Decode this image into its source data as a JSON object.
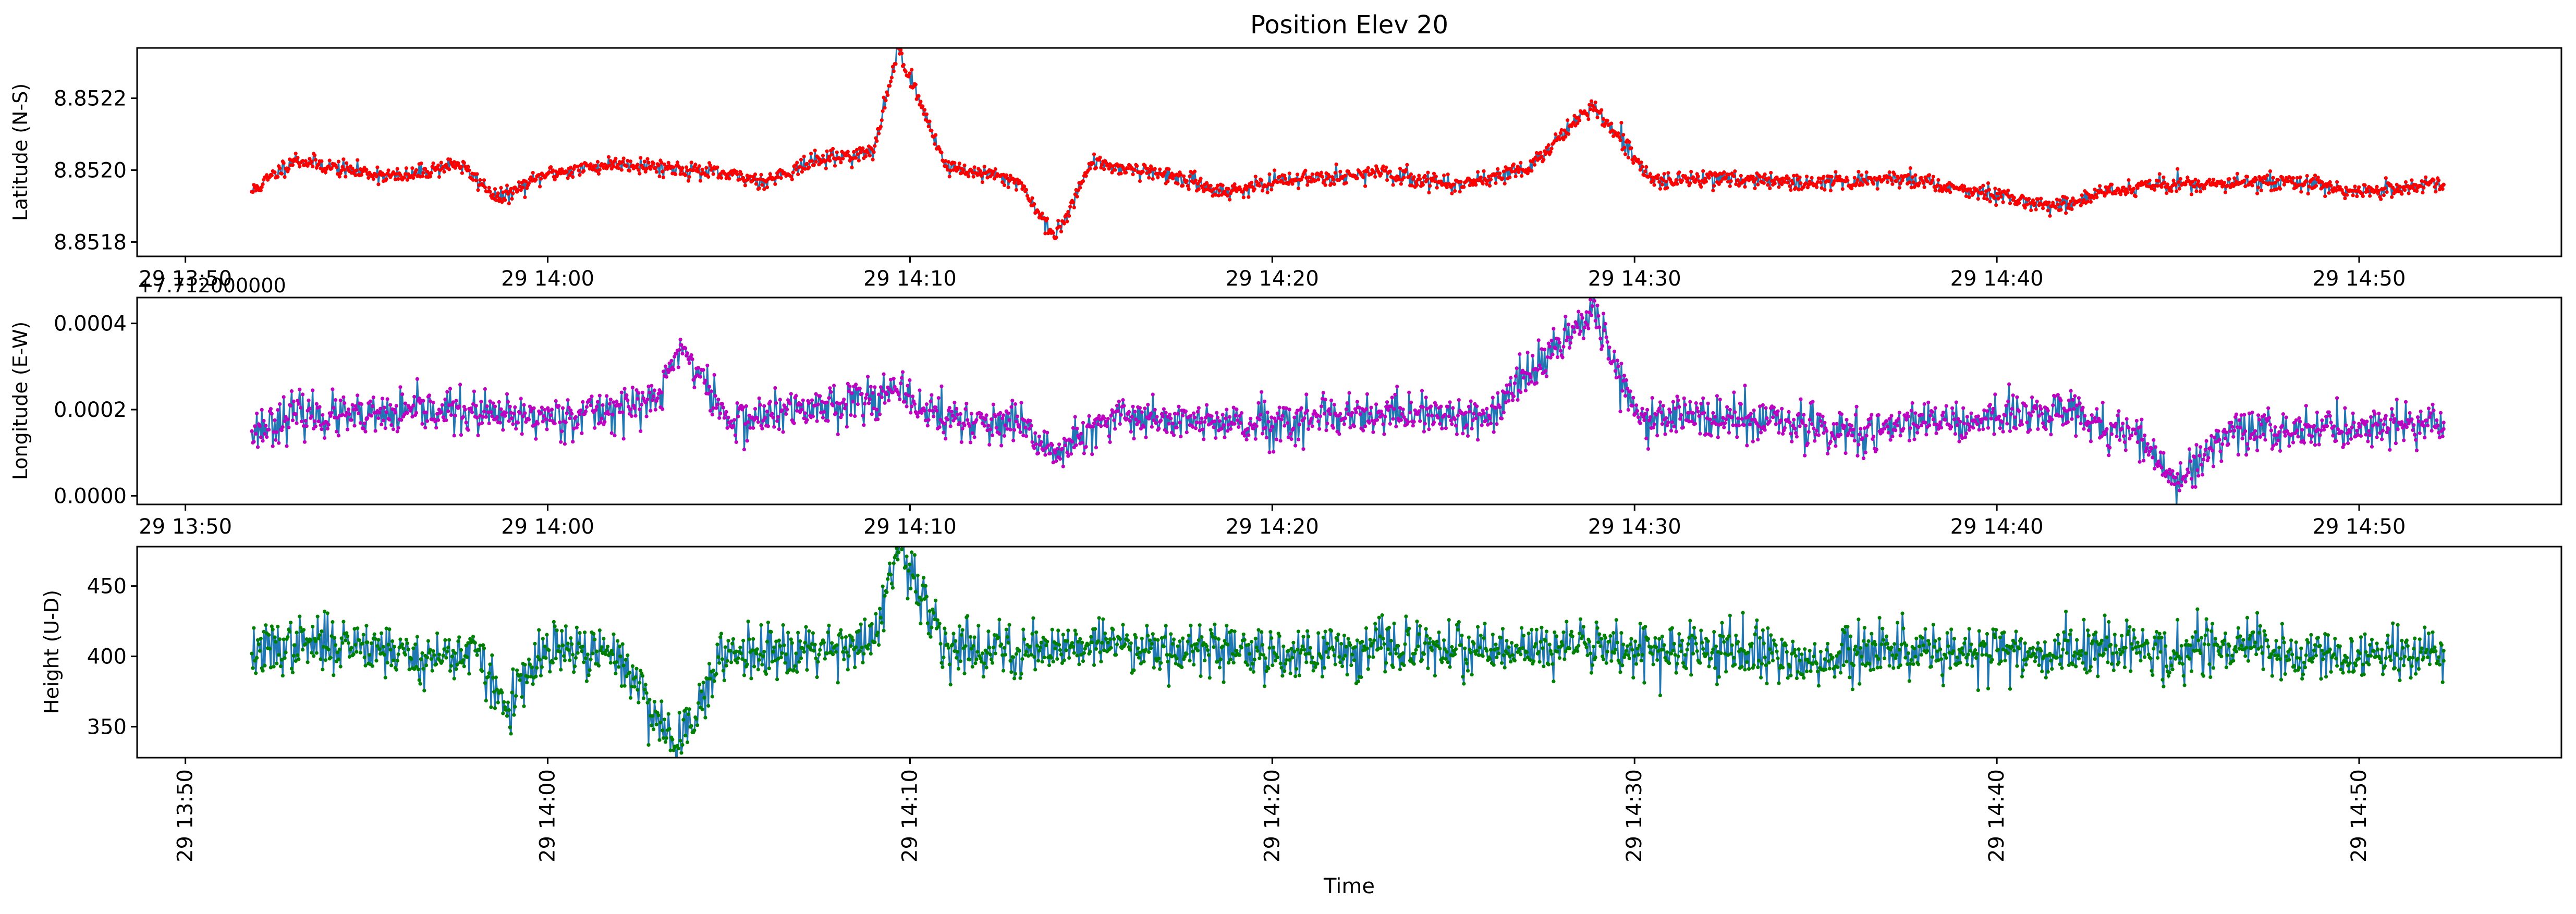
{
  "figure": {
    "title": "Position Elev 20",
    "xlabel": "Time"
  },
  "colors": {
    "series_line": "#1f77b4",
    "lat_markers": "#ff0000",
    "lon_markers": "#c000c0",
    "hgt_markers": "#008000",
    "axes": "#000000"
  },
  "chart_data": [
    {
      "type": "line",
      "title": "Position Elev 20",
      "ylabel": "Latitude (N-S)",
      "xlabel": "",
      "x_ticks": [
        "29 13:50",
        "29 14:00",
        "29 14:10",
        "29 14:20",
        "29 14:30",
        "29 14:40",
        "29 14:50"
      ],
      "x_range": [
        "13:48:40",
        "14:55:35"
      ],
      "ylim": [
        8.85176,
        8.85234
      ],
      "y_ticks": [
        8.8518,
        8.852,
        8.8522
      ],
      "y_tick_labels": [
        "8.8518",
        "8.8520",
        "8.8522"
      ],
      "marker_color": "#ff0000",
      "series": [
        {
          "time_start": "13:51:50",
          "time_end": "14:52:20",
          "points": [
            [
              "13:51:50",
              8.85194
            ],
            [
              "13:53:00",
              8.85203
            ],
            [
              "13:54:30",
              8.852
            ],
            [
              "13:56:00",
              8.85198
            ],
            [
              "13:57:30",
              8.85202
            ],
            [
              "13:58:40",
              8.85192
            ],
            [
              "14:00:00",
              8.85199
            ],
            [
              "14:02:00",
              8.85202
            ],
            [
              "14:04:00",
              8.852
            ],
            [
              "14:06:00",
              8.85197
            ],
            [
              "14:07:30",
              8.85203
            ],
            [
              "14:09:00",
              8.85205
            ],
            [
              "14:09:40",
              8.85234
            ],
            [
              "14:11:00",
              8.85201
            ],
            [
              "14:13:00",
              8.85197
            ],
            [
              "14:14:00",
              8.85181
            ],
            [
              "14:15:00",
              8.85202
            ],
            [
              "14:17:00",
              8.85199
            ],
            [
              "14:18:40",
              8.85194
            ],
            [
              "14:21:00",
              8.85198
            ],
            [
              "14:23:00",
              8.85199
            ],
            [
              "14:25:00",
              8.85196
            ],
            [
              "14:27:00",
              8.852
            ],
            [
              "14:28:50",
              8.85218
            ],
            [
              "14:30:30",
              8.85197
            ],
            [
              "14:32:30",
              8.85198
            ],
            [
              "14:35:00",
              8.85196
            ],
            [
              "14:37:00",
              8.85198
            ],
            [
              "14:39:00",
              8.85195
            ],
            [
              "14:41:30",
              8.8519
            ],
            [
              "14:44:00",
              8.85196
            ],
            [
              "14:46:00",
              8.85196
            ],
            [
              "14:48:00",
              8.85197
            ],
            [
              "14:50:00",
              8.85194
            ],
            [
              "14:52:20",
              8.85196
            ]
          ]
        }
      ]
    },
    {
      "type": "line",
      "ylabel": "Longitude (E-W)",
      "xlabel": "",
      "offset_text": "+7.712000000",
      "x_ticks": [
        "29 13:50",
        "29 14:00",
        "29 14:10",
        "29 14:20",
        "29 14:30",
        "29 14:40",
        "29 14:50"
      ],
      "x_range": [
        "13:48:40",
        "14:55:35"
      ],
      "ylim": [
        -2e-05,
        0.00046
      ],
      "y_ticks": [
        0.0,
        0.0002,
        0.0004
      ],
      "y_tick_labels": [
        "0.0000",
        "0.0002",
        "0.0004"
      ],
      "marker_color": "#c000c0",
      "series": [
        {
          "time_start": "13:51:50",
          "time_end": "14:52:20",
          "points": [
            [
              "13:51:50",
              0.00015
            ],
            [
              "13:53:00",
              0.00019
            ],
            [
              "13:55:00",
              0.00018
            ],
            [
              "13:57:00",
              0.0002
            ],
            [
              "13:59:00",
              0.00018
            ],
            [
              "14:01:00",
              0.00019
            ],
            [
              "14:03:00",
              0.00022
            ],
            [
              "14:03:40",
              0.00035
            ],
            [
              "14:05:00",
              0.00017
            ],
            [
              "14:07:00",
              0.0002
            ],
            [
              "14:09:30",
              0.00024
            ],
            [
              "14:11:00",
              0.00018
            ],
            [
              "14:13:00",
              0.00016
            ],
            [
              "14:14:00",
              0.0001
            ],
            [
              "14:16:00",
              0.00019
            ],
            [
              "14:18:00",
              0.00017
            ],
            [
              "14:20:00",
              0.00016
            ],
            [
              "14:22:00",
              0.00018
            ],
            [
              "14:24:00",
              0.00019
            ],
            [
              "14:26:00",
              0.00018
            ],
            [
              "14:28:50",
              0.00044
            ],
            [
              "14:30:00",
              0.00019
            ],
            [
              "14:32:00",
              0.00018
            ],
            [
              "14:34:00",
              0.00017
            ],
            [
              "14:36:00",
              0.00014
            ],
            [
              "14:38:00",
              0.00017
            ],
            [
              "14:40:00",
              0.00018
            ],
            [
              "14:42:00",
              0.0002
            ],
            [
              "14:44:00",
              0.00013
            ],
            [
              "14:45:00",
              3e-05
            ],
            [
              "14:46:30",
              0.00016
            ],
            [
              "14:48:00",
              0.00015
            ],
            [
              "14:50:00",
              0.00016
            ],
            [
              "14:52:20",
              0.00017
            ]
          ]
        }
      ]
    },
    {
      "type": "line",
      "ylabel": "Height (U-D)",
      "xlabel": "Time",
      "x_ticks": [
        "29 13:50",
        "29 14:00",
        "29 14:10",
        "29 14:20",
        "29 14:30",
        "29 14:40",
        "29 14:50"
      ],
      "x_range": [
        "13:48:40",
        "14:55:35"
      ],
      "ylim": [
        328,
        478
      ],
      "y_ticks": [
        350,
        400,
        450
      ],
      "y_tick_labels": [
        "350",
        "400",
        "450"
      ],
      "marker_color": "#008000",
      "series": [
        {
          "time_start": "13:51:50",
          "time_end": "14:52:20",
          "points": [
            [
              "13:51:50",
              402
            ],
            [
              "13:53:00",
              408
            ],
            [
              "13:55:00",
              410
            ],
            [
              "13:56:30",
              398
            ],
            [
              "13:58:00",
              404
            ],
            [
              "13:58:50",
              362
            ],
            [
              "14:00:00",
              405
            ],
            [
              "14:02:00",
              400
            ],
            [
              "14:03:30",
              336
            ],
            [
              "14:05:00",
              404
            ],
            [
              "14:07:00",
              406
            ],
            [
              "14:09:00",
              410
            ],
            [
              "14:09:40",
              474
            ],
            [
              "14:11:00",
              408
            ],
            [
              "14:13:00",
              404
            ],
            [
              "14:15:00",
              410
            ],
            [
              "14:17:00",
              407
            ],
            [
              "14:19:00",
              404
            ],
            [
              "14:21:00",
              402
            ],
            [
              "14:23:00",
              406
            ],
            [
              "14:25:00",
              404
            ],
            [
              "14:27:00",
              403
            ],
            [
              "14:29:00",
              410
            ],
            [
              "14:31:00",
              402
            ],
            [
              "14:33:00",
              404
            ],
            [
              "14:35:00",
              396
            ],
            [
              "14:37:00",
              406
            ],
            [
              "14:39:00",
              403
            ],
            [
              "14:41:00",
              402
            ],
            [
              "14:43:00",
              405
            ],
            [
              "14:45:00",
              400
            ],
            [
              "14:47:00",
              406
            ],
            [
              "14:49:00",
              398
            ],
            [
              "14:51:00",
              402
            ],
            [
              "14:52:20",
              404
            ]
          ]
        }
      ]
    }
  ]
}
